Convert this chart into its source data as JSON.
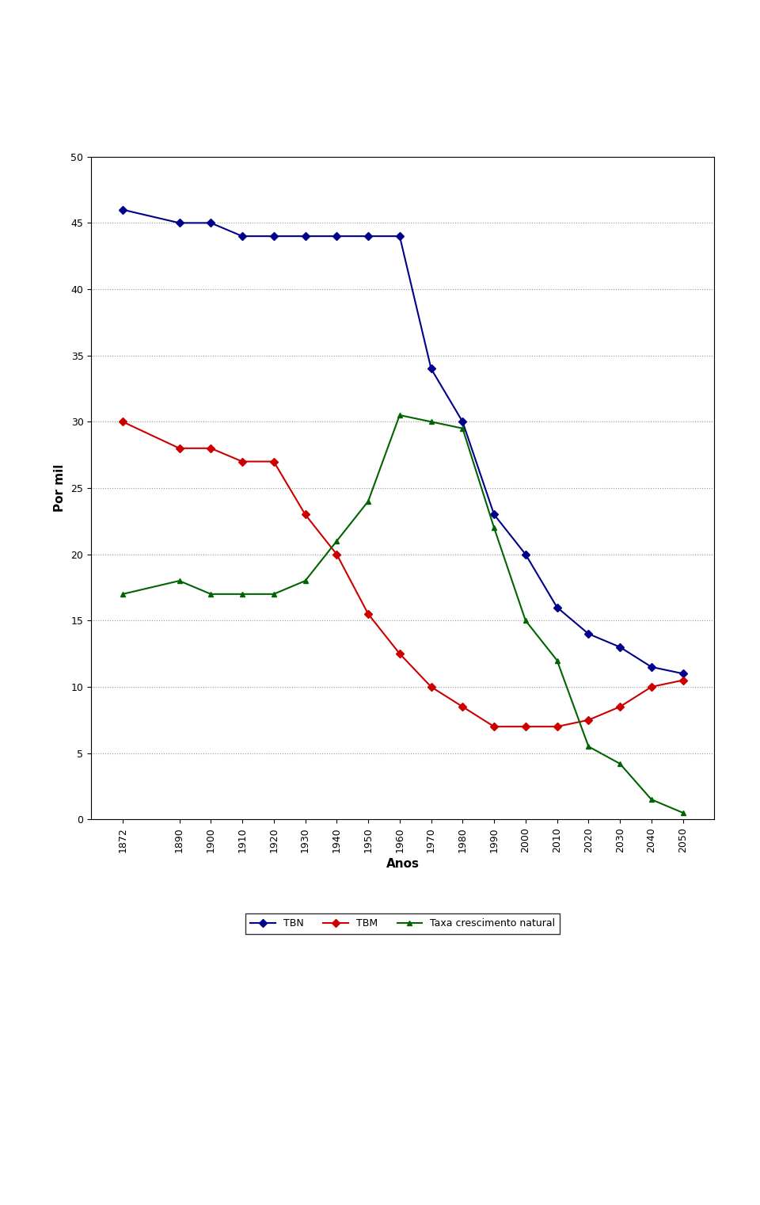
{
  "years": [
    1872,
    1890,
    1900,
    1910,
    1920,
    1930,
    1940,
    1950,
    1960,
    1970,
    1980,
    1990,
    2000,
    2010,
    2020,
    2030,
    2040,
    2050
  ],
  "TBN": [
    46,
    45,
    45,
    44,
    44,
    44,
    44,
    44,
    44,
    34,
    30,
    23,
    20,
    16,
    14,
    13,
    11.5,
    11
  ],
  "TBM": [
    30,
    28,
    28,
    27,
    27,
    23,
    20,
    15.5,
    12.5,
    10,
    8.5,
    7,
    7,
    7,
    7.5,
    8.5,
    10,
    10.5
  ],
  "TCN": [
    17,
    18,
    17,
    17,
    17,
    18,
    21,
    24,
    30.5,
    30,
    29.5,
    22,
    15,
    12,
    5.5,
    4.2,
    1.5,
    0.5
  ],
  "TBN_color": "#00008B",
  "TBM_color": "#CC0000",
  "TCN_color": "#006400",
  "xlabel": "Anos",
  "ylabel": "Por mil",
  "ylim": [
    0,
    50
  ],
  "yticks": [
    0,
    5,
    10,
    15,
    20,
    25,
    30,
    35,
    40,
    45,
    50
  ],
  "legend_labels": [
    "TBN",
    "TBM",
    "Taxa crescimento natural"
  ],
  "background_color": "#ffffff",
  "grid_color": "#999999",
  "title_fontsize": 11,
  "axis_fontsize": 10,
  "tick_fontsize": 9
}
